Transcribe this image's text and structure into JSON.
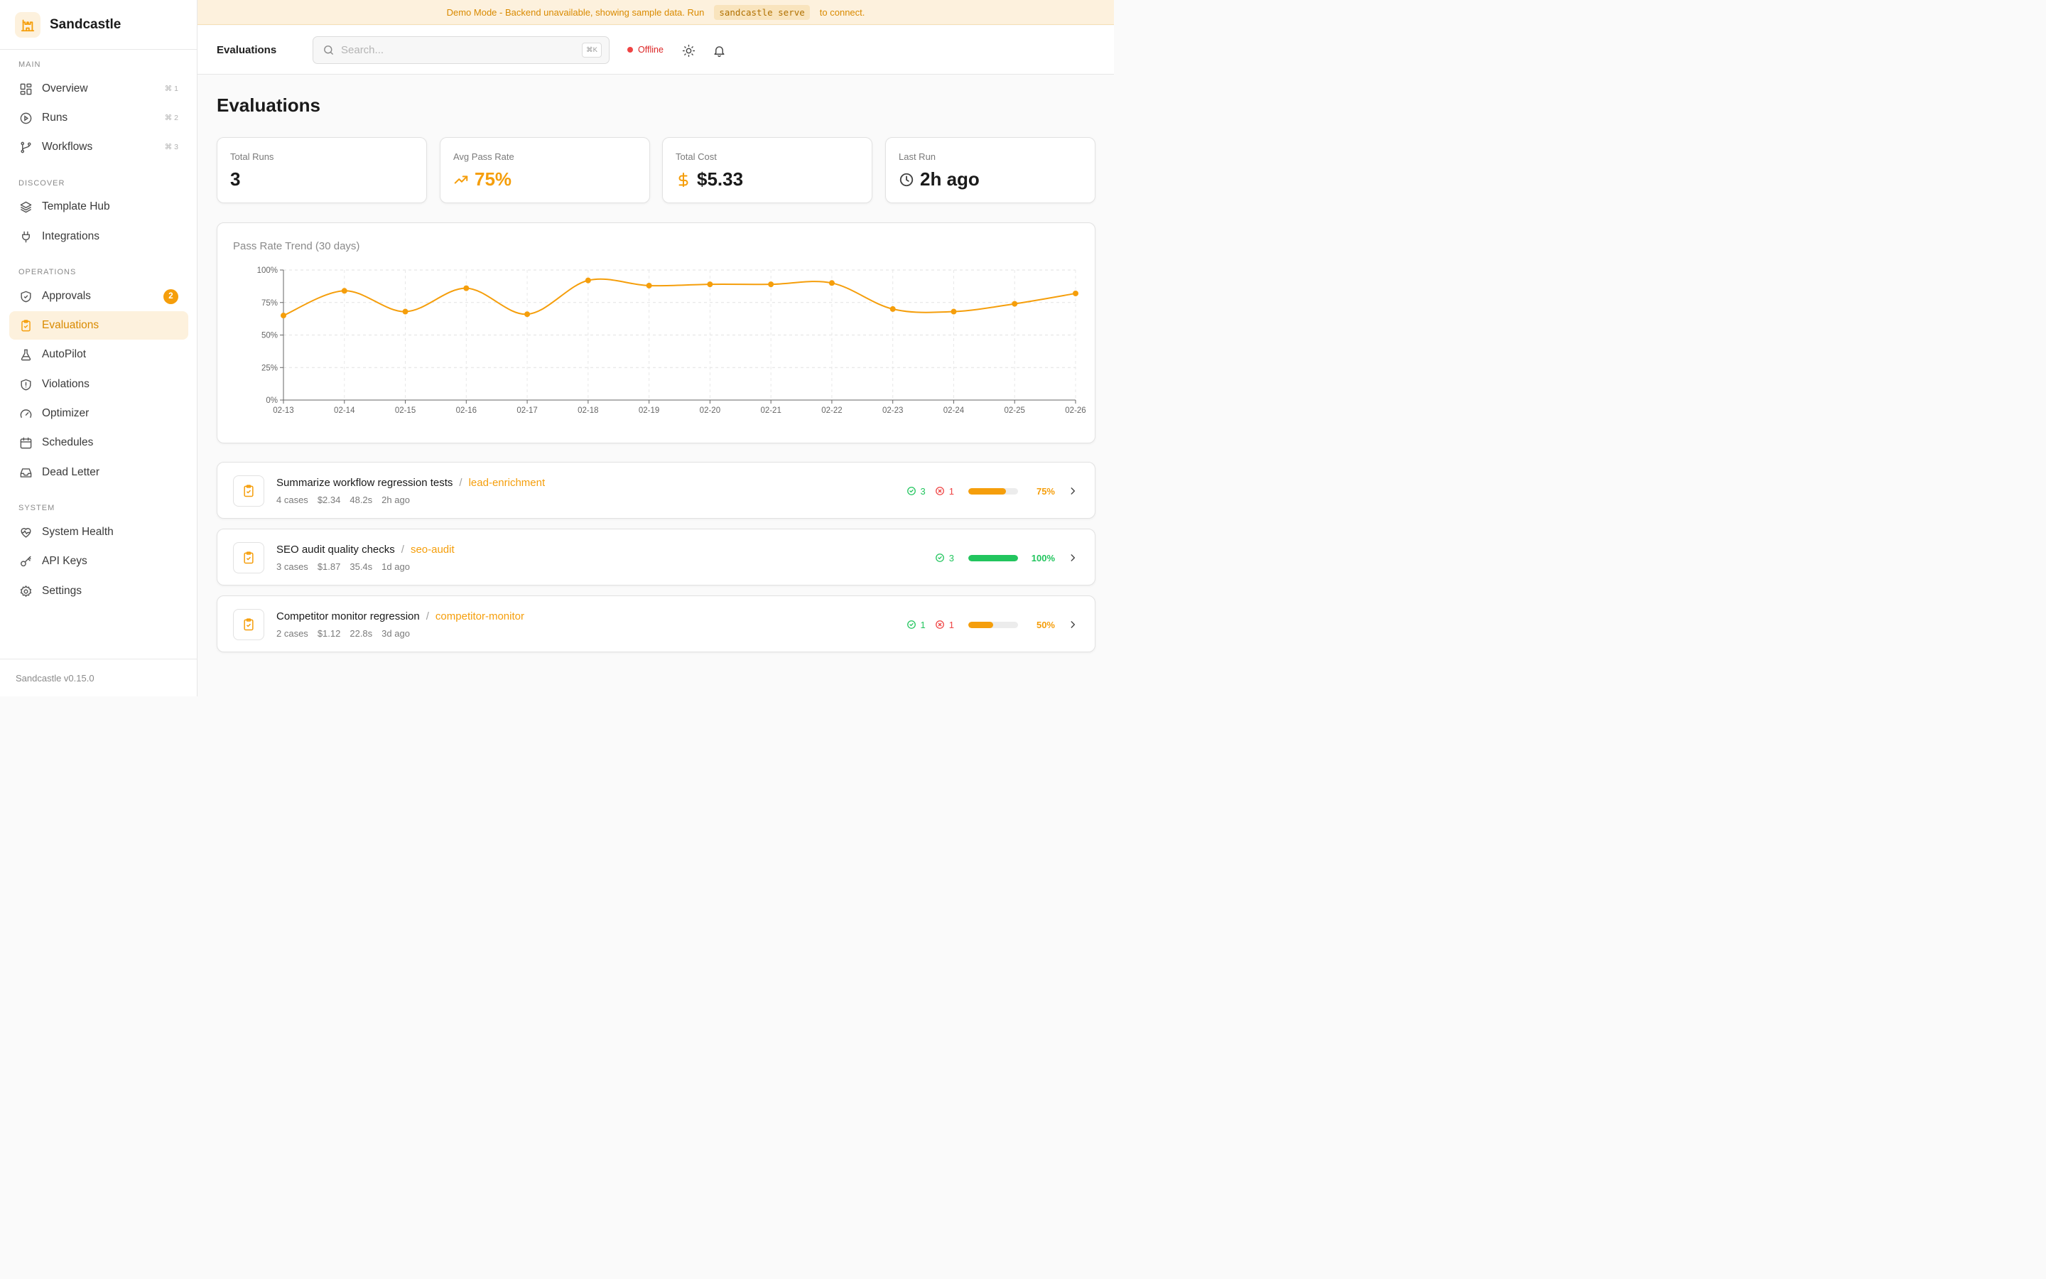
{
  "brand": {
    "name": "Sandcastle",
    "version": "Sandcastle v0.15.0"
  },
  "nav": {
    "main_label": "MAIN",
    "discover_label": "DISCOVER",
    "operations_label": "OPERATIONS",
    "system_label": "SYSTEM",
    "overview": {
      "label": "Overview",
      "shortcut": "⌘ 1"
    },
    "runs": {
      "label": "Runs",
      "shortcut": "⌘ 2"
    },
    "workflows": {
      "label": "Workflows",
      "shortcut": "⌘ 3"
    },
    "template_hub": {
      "label": "Template Hub"
    },
    "integrations": {
      "label": "Integrations"
    },
    "approvals": {
      "label": "Approvals",
      "badge": "2"
    },
    "evaluations": {
      "label": "Evaluations"
    },
    "autopilot": {
      "label": "AutoPilot"
    },
    "violations": {
      "label": "Violations"
    },
    "optimizer": {
      "label": "Optimizer"
    },
    "schedules": {
      "label": "Schedules"
    },
    "dead_letter": {
      "label": "Dead Letter"
    },
    "system_health": {
      "label": "System Health"
    },
    "api_keys": {
      "label": "API Keys"
    },
    "settings": {
      "label": "Settings"
    }
  },
  "banner": {
    "text_before": "Demo Mode - Backend unavailable, showing sample data. Run",
    "command": "sandcastle serve",
    "text_after": "to connect."
  },
  "topbar": {
    "title": "Evaluations",
    "search_placeholder": "Search...",
    "search_shortcut": "⌘K",
    "status": "Offline"
  },
  "page": {
    "title": "Evaluations"
  },
  "stats": {
    "total_runs": {
      "label": "Total Runs",
      "value": "3"
    },
    "avg_pass_rate": {
      "label": "Avg Pass Rate",
      "value": "75%"
    },
    "total_cost": {
      "label": "Total Cost",
      "value": "$5.33"
    },
    "last_run": {
      "label": "Last Run",
      "value": "2h ago"
    }
  },
  "chart_data": {
    "type": "line",
    "title": "Pass Rate Trend (30 days)",
    "xlabel": "",
    "ylabel": "",
    "ylim": [
      0,
      100
    ],
    "yticks": [
      "0%",
      "25%",
      "50%",
      "75%",
      "100%"
    ],
    "grid": true,
    "color": "#f59e0b",
    "x": [
      "02-13",
      "02-14",
      "02-15",
      "02-16",
      "02-17",
      "02-18",
      "02-19",
      "02-20",
      "02-21",
      "02-22",
      "02-23",
      "02-24",
      "02-25",
      "02-26"
    ],
    "values": [
      65,
      84,
      68,
      86,
      66,
      92,
      88,
      89,
      89,
      90,
      70,
      68,
      74,
      82
    ]
  },
  "evaluations": [
    {
      "name": "Summarize workflow regression tests",
      "workflow": "lead-enrichment",
      "cases": "4 cases",
      "cost": "$2.34",
      "duration": "48.2s",
      "ago": "2h ago",
      "passed": "3",
      "failed": "1",
      "pass_rate": 75,
      "pct_label": "75%",
      "color": "#f59e0b"
    },
    {
      "name": "SEO audit quality checks",
      "workflow": "seo-audit",
      "cases": "3 cases",
      "cost": "$1.87",
      "duration": "35.4s",
      "ago": "1d ago",
      "passed": "3",
      "failed": null,
      "pass_rate": 100,
      "pct_label": "100%",
      "color": "#22c55e"
    },
    {
      "name": "Competitor monitor regression",
      "workflow": "competitor-monitor",
      "cases": "2 cases",
      "cost": "$1.12",
      "duration": "22.8s",
      "ago": "3d ago",
      "passed": "1",
      "failed": "1",
      "pass_rate": 50,
      "pct_label": "50%",
      "color": "#f59e0b"
    }
  ],
  "colors": {
    "accent": "#f59e0b",
    "success": "#22c55e",
    "danger": "#ef4444",
    "accent_bg": "#fdf1dd"
  }
}
